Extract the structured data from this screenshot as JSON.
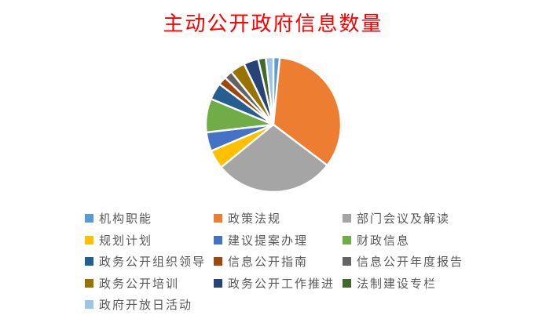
{
  "chart_data": {
    "type": "pie",
    "title": "主动公开政府信息数量",
    "title_color": "#FF0000",
    "categories": [
      "机构职能",
      "政策法规",
      "部门会议及解读",
      "规划计划",
      "建议提案办理",
      "财政信息",
      "政务公开组织领导",
      "信息公开指南",
      "信息公开年度报告",
      "政务公开培训",
      "政务公开工作推进",
      "法制建设专栏",
      "政府开放日活动"
    ],
    "values": [
      1.5,
      33.5,
      28.5,
      4.5,
      4.5,
      8,
      4,
      2,
      2,
      3.5,
      3.5,
      1.8,
      1.8
    ],
    "values_unit": "percent share (estimated from slice angles; no data labels shown)",
    "colors": [
      "#5B9BD5",
      "#ED7D31",
      "#A5A5A5",
      "#FFC000",
      "#4472C4",
      "#70AD47",
      "#255E91",
      "#9E480E",
      "#636363",
      "#997300",
      "#264478",
      "#43682B",
      "#9DC3E6"
    ],
    "slice_border_color": "#FFFFFF",
    "legend_position": "bottom",
    "legend_text_color": "#595959",
    "start_angle_deg": 0,
    "direction": "clockwise"
  }
}
